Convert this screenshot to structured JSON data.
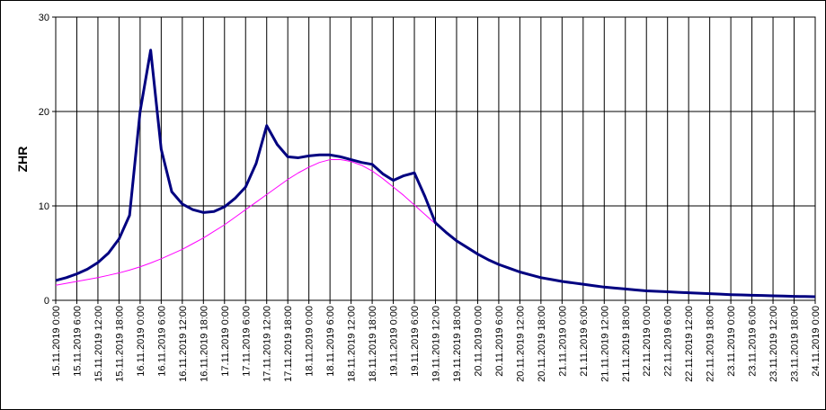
{
  "chart_data": {
    "type": "line",
    "ylabel": "ZHR",
    "ylim": [
      0,
      30
    ],
    "yticks": [
      0,
      10,
      20,
      30
    ],
    "grid": true,
    "categories": [
      "15.11.2019 0:00",
      null,
      "15.11.2019 6:00",
      null,
      "15.11.2019 12:00",
      null,
      "15.11.2019 18:00",
      null,
      "16.11.2019 0:00",
      null,
      "16.11.2019 6:00",
      null,
      "16.11.2019 12:00",
      null,
      "16.11.2019 18:00",
      null,
      "17.11.2019 0:00",
      null,
      "17.11.2019 6:00",
      null,
      "17.11.2019 12:00",
      null,
      "17.11.2019 18:00",
      null,
      "18.11.2019 0:00",
      null,
      "18.11.2019 6:00",
      null,
      "18.11.2019 12:00",
      null,
      "18.11.2019 18:00",
      null,
      "19.11.2019 0:00",
      null,
      "19.11.2019 6:00",
      null,
      "19.11.2019 12:00",
      null,
      "19.11.2019 18:00",
      null,
      "20.11.2019 0:00",
      null,
      "20.11.2019 6:00",
      null,
      "20.11.2019 12:00",
      null,
      "20.11.2019 18:00",
      null,
      "21.11.2019 0:00",
      null,
      "21.11.2019 6:00",
      null,
      "21.11.2019 12:00",
      null,
      "21.11.2019 18:00",
      null,
      "22.11.2019 0:00",
      null,
      "22.11.2019 6:00",
      null,
      "22.11.2019 12:00",
      null,
      "22.11.2019 18:00",
      null,
      "23.11.2019 0:00",
      null,
      "23.11.2019 6:00",
      null,
      "23.11.2019 12:00",
      null,
      "23.11.2019 18:00",
      null,
      "24.11.2019 0:00"
    ],
    "series": [
      {
        "color": "#ff00ff",
        "width": 1,
        "values": [
          1.6,
          1.8,
          2.0,
          2.2,
          2.4,
          2.65,
          2.9,
          3.2,
          3.55,
          3.95,
          4.4,
          4.9,
          5.4,
          6.0,
          6.6,
          7.3,
          8.0,
          8.8,
          9.6,
          10.4,
          11.2,
          12.0,
          12.8,
          13.5,
          14.1,
          14.6,
          14.9,
          14.9,
          14.7,
          14.3,
          13.7,
          12.9,
          12.0,
          11.1,
          10.1,
          9.1,
          8.1,
          7.2,
          6.3,
          5.6,
          4.9,
          4.3,
          3.8,
          3.4,
          3.0,
          2.7,
          2.4,
          2.2,
          2.0,
          1.85,
          1.7,
          1.55,
          1.4,
          1.3,
          1.2,
          1.1,
          1.0,
          0.95,
          0.9,
          0.85,
          0.8,
          0.75,
          0.7,
          0.65,
          0.6,
          0.57,
          0.54,
          0.51,
          0.48,
          0.45,
          0.42,
          0.4,
          0.38
        ]
      },
      {
        "color": "#000080",
        "width": 3,
        "values": [
          2.1,
          2.4,
          2.8,
          3.3,
          4.0,
          5.0,
          6.5,
          9.0,
          20,
          26.5,
          16,
          11.5,
          10.2,
          9.6,
          9.3,
          9.4,
          9.9,
          10.8,
          12,
          14.5,
          18.5,
          16.5,
          15.2,
          15.1,
          15.3,
          15.4,
          15.4,
          15.2,
          14.9,
          14.6,
          14.4,
          13.4,
          12.7,
          13.2,
          13.5,
          11,
          8.2,
          7.2,
          6.3,
          5.6,
          4.9,
          4.3,
          3.8,
          3.4,
          3.0,
          2.7,
          2.4,
          2.2,
          2.0,
          1.85,
          1.7,
          1.55,
          1.4,
          1.3,
          1.2,
          1.1,
          1.0,
          0.95,
          0.9,
          0.85,
          0.8,
          0.75,
          0.7,
          0.65,
          0.6,
          0.57,
          0.54,
          0.51,
          0.48,
          0.45,
          0.42,
          0.4,
          0.38
        ]
      }
    ]
  }
}
